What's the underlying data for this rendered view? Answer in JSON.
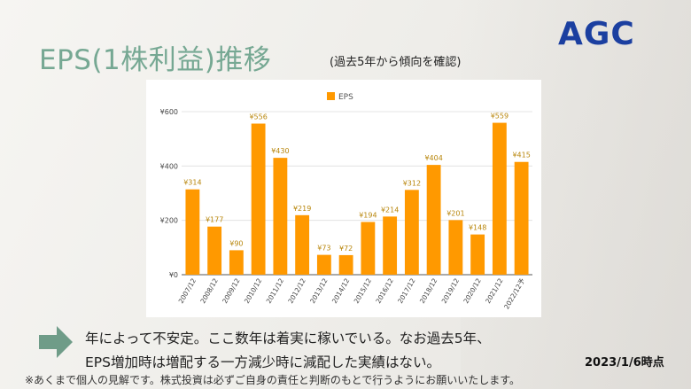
{
  "slide": {
    "title": "EPS(1株利益)推移",
    "subtitle": "(過去5年から傾向を確認)",
    "logo": "AGC",
    "note_lines": [
      "年によって不安定。ここ数年は着実に稼いでいる。なお過去5年、",
      "EPS増加時は増配する一方減少時に減配した実績はない。"
    ],
    "date": "2023/1/6時点",
    "disclaimer": "※あくまで個人の見解です。株式投資は必ずご自身の責任と判断のもとで行うようにお願いいたします。",
    "colors": {
      "title": "#76a893",
      "logo": "#1b3fa0",
      "arrow": "#6f9c88",
      "bar": "#ff9900"
    }
  },
  "chart_data": {
    "type": "bar",
    "categories": [
      "2007/12",
      "2008/12",
      "2009/12",
      "2010/12",
      "2011/12",
      "2012/12",
      "2013/12",
      "2014/12",
      "2015/12",
      "2016/12",
      "2017/12",
      "2018/12",
      "2019/12",
      "2020/12",
      "2021/12",
      "2022/12予"
    ],
    "series": [
      {
        "name": "EPS",
        "values": [
          314,
          177,
          90,
          556,
          430,
          219,
          73,
          72,
          194,
          214,
          312,
          404,
          201,
          148,
          559,
          415
        ],
        "labels": [
          "¥314",
          "¥177",
          "¥90",
          "¥556",
          "¥430",
          "¥219",
          "¥73",
          "¥72",
          "¥194",
          "¥214",
          "¥312",
          "¥404",
          "¥201",
          "¥148",
          "¥559",
          "¥415"
        ]
      }
    ],
    "yticks": [
      0,
      200,
      400,
      600
    ],
    "ytick_labels": [
      "¥0",
      "¥200",
      "¥400",
      "¥600"
    ],
    "ylim": [
      0,
      600
    ],
    "grid": true,
    "legend": "top"
  }
}
